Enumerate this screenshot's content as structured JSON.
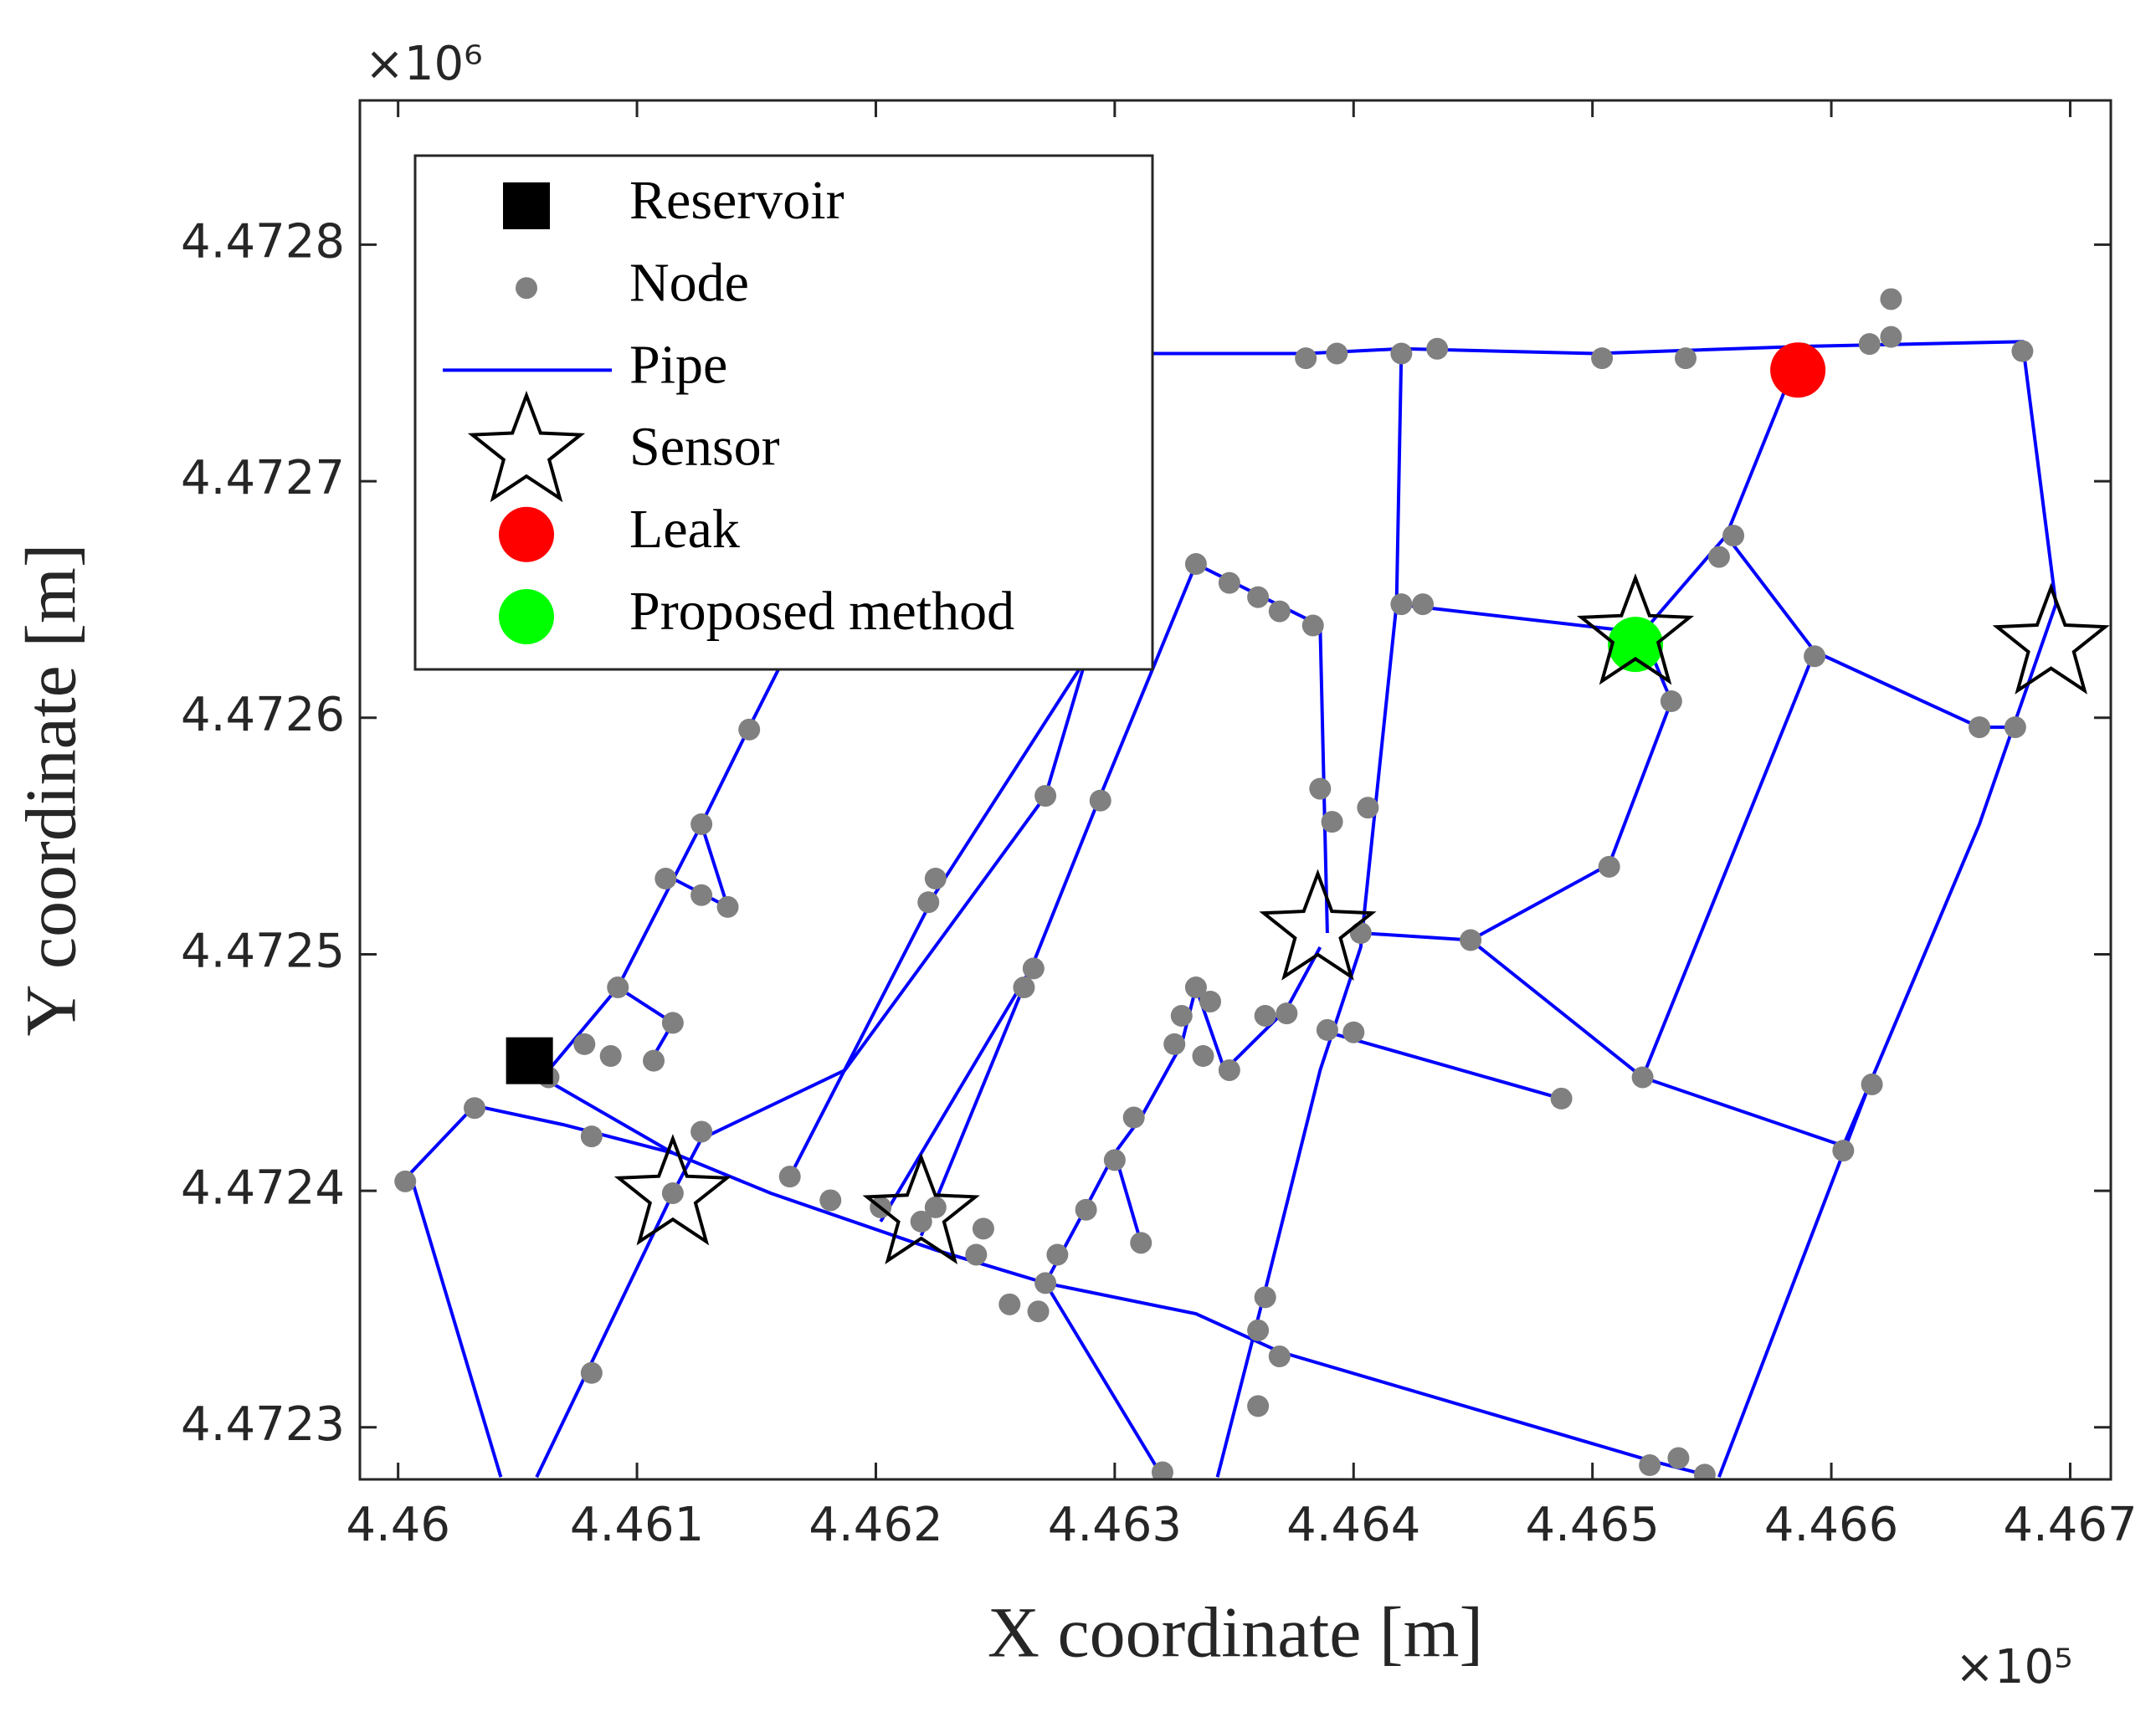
{
  "chart_data": {
    "type": "scatter",
    "xlabel": "X coordinate [m]",
    "ylabel": "Y coordinate [m]",
    "x_exponent_label": "×10⁵",
    "y_exponent_label": "×10⁶",
    "xlim": [
      445984,
      446717
    ],
    "ylim": [
      4472278,
      4472861
    ],
    "xticks": [
      {
        "value": 446000,
        "label": "4.46"
      },
      {
        "value": 446100,
        "label": "4.461"
      },
      {
        "value": 446200,
        "label": "4.462"
      },
      {
        "value": 446300,
        "label": "4.463"
      },
      {
        "value": 446400,
        "label": "4.464"
      },
      {
        "value": 446500,
        "label": "4.465"
      },
      {
        "value": 446600,
        "label": "4.466"
      },
      {
        "value": 446700,
        "label": "4.467"
      }
    ],
    "yticks": [
      {
        "value": 4472300,
        "label": "4.4723"
      },
      {
        "value": 4472400,
        "label": "4.4724"
      },
      {
        "value": 4472500,
        "label": "4.4725"
      },
      {
        "value": 4472600,
        "label": "4.4726"
      },
      {
        "value": 4472700,
        "label": "4.4727"
      },
      {
        "value": 4472800,
        "label": "4.4728"
      }
    ],
    "legend": "upper left",
    "series": [
      {
        "name": "Reservoir",
        "color": "#000000",
        "marker": "square",
        "x": [
          446055
        ],
        "y": [
          4472455
        ]
      },
      {
        "name": "Node",
        "color": "#808080",
        "marker": "circle",
        "x": [
          446380,
          446393,
          446420,
          446435,
          446504,
          446539,
          446588,
          446616,
          446625,
          446625,
          446680,
          446559,
          446553,
          446593,
          446533,
          446662,
          446677,
          446507,
          446449,
          446403,
          446386,
          446391,
          446406,
          446521,
          446605,
          446617,
          446487,
          446334,
          446348,
          446360,
          446369,
          446383,
          446420,
          446429,
          446389,
          446400,
          446363,
          446372,
          446360,
          446363,
          446369,
          446360,
          446320,
          446524,
          446536,
          446547,
          446334,
          446328,
          446340,
          446348,
          446325,
          446337,
          446308,
          446300,
          446311,
          446288,
          446276,
          446271,
          446256,
          446268,
          446242,
          446245,
          446225,
          446219,
          446202,
          446181,
          446164,
          446127,
          446115,
          446081,
          446081,
          446032,
          446003,
          446063,
          446078,
          446092,
          446115,
          446107,
          446089,
          446127,
          446112,
          446127,
          446138,
          446147,
          446225,
          446222,
          446271,
          446294,
          446262,
          446266
        ],
        "y": [
          4472752,
          4472754,
          4472754,
          4472756,
          4472752,
          4472752,
          4472754,
          4472758,
          4472777,
          4472761,
          4472755,
          4472677,
          4472668,
          4472626,
          4472607,
          4472596,
          4472596,
          4472537,
          4472506,
          4472509,
          4472570,
          4472556,
          4472562,
          4472448,
          4472417,
          4472445,
          4472439,
          4472665,
          4472657,
          4472651,
          4472645,
          4472639,
          4472648,
          4472648,
          4472468,
          4472467,
          4472474,
          4472475,
          4472341,
          4472355,
          4472330,
          4472309,
          4472281,
          4472284,
          4472287,
          4472280,
          4472486,
          4472474,
          4472480,
          4472451,
          4472462,
          4472457,
          4472431,
          4472413,
          4472378,
          4472392,
          4472373,
          4472361,
          4472352,
          4472349,
          4472373,
          4472384,
          4472393,
          4472387,
          4472393,
          4472396,
          4472406,
          4472425,
          4472399,
          4472323,
          4472423,
          4472435,
          4472404,
          4472448,
          4472462,
          4472486,
          4472471,
          4472455,
          4472457,
          4472555,
          4472532,
          4472525,
          4472520,
          4472595,
          4472532,
          4472522,
          4472567,
          4472565,
          4472486,
          4472494
        ]
      },
      {
        "name": "Pipe",
        "color": "#0000ff",
        "marker": "line",
        "lines": [
          {
            "x": [
              446294,
              446380,
              446420,
              446501,
              446588,
              446680,
              446694
            ],
            "y": [
              4472754,
              4472754,
              4472756,
              4472754,
              4472757,
              4472759,
              4472648
            ]
          },
          {
            "x": [
              446420,
              446418,
              446403,
              446386,
              446363,
              446343
            ],
            "y": [
              4472756,
              4472648,
              4472503,
              4472451,
              4472358,
              4472279
            ]
          },
          {
            "x": [
              446694,
              446662,
              446616,
              446553
            ],
            "y": [
              4472648,
              4472555,
              4472445,
              4472279
            ]
          },
          {
            "x": [
              446588,
              446556,
              446521,
              446533,
              446507,
              446449,
              446403
            ],
            "y": [
              4472757,
              4472677,
              4472636,
              4472607,
              4472538,
              4472506,
              4472509
            ]
          },
          {
            "x": [
              446556,
              446593,
              446662,
              446680
            ],
            "y": [
              4472677,
              4472628,
              4472596,
              4472596
            ]
          },
          {
            "x": [
              446593,
              446521,
              446605,
              446616
            ],
            "y": [
              4472628,
              4472448,
              4472419,
              4472445
            ]
          },
          {
            "x": [
              446418,
              446521
            ],
            "y": [
              4472648,
              4472636
            ]
          },
          {
            "x": [
              446449,
              446521
            ],
            "y": [
              4472506,
              4472448
            ]
          },
          {
            "x": [
              446386,
              446487
            ],
            "y": [
              4472468,
              4472439
            ]
          },
          {
            "x": [
              446055,
              446115,
              446156,
              446225,
              446271,
              446334,
              446369,
              446524,
              446547
            ],
            "y": [
              4472451,
              4472416,
              4472399,
              4472375,
              4472361,
              4472348,
              4472332,
              4472286,
              4472280
            ]
          },
          {
            "x": [
              446000,
              446032,
              446069,
              446115
            ],
            "y": [
              4472402,
              4472436,
              4472428,
              4472416
            ]
          },
          {
            "x": [
              446006,
              446043
            ],
            "y": [
              4472404,
              4472279
            ]
          },
          {
            "x": [
              446058,
              446115,
              446127,
              446187,
              446271,
              446288
            ],
            "y": [
              4472279,
              4472399,
              4472422,
              4472451,
              4472567,
              4472625
            ]
          },
          {
            "x": [
              446164,
              446225,
              446288
            ],
            "y": [
              4472406,
              4472526,
              4472625
            ]
          },
          {
            "x": [
              446202,
              446265,
              446294,
              446334,
              446386,
              446389
            ],
            "y": [
              4472387,
              4472494,
              4472567,
              4472665,
              4472639,
              4472509
            ]
          },
          {
            "x": [
              446219,
              446265
            ],
            "y": [
              4472381,
              4472494
            ]
          },
          {
            "x": [
              446063,
              446092,
              446127,
              446147,
              446179
            ],
            "y": [
              4472451,
              4472486,
              4472555,
              4472596,
              4472660
            ]
          },
          {
            "x": [
              446320,
              446271,
              446288,
              446300,
              446311,
              446328,
              446334,
              446346,
              446372,
              446386
            ],
            "y": [
              4472279,
              4472361,
              4472393,
              4472416,
              4472431,
              4472462,
              4472486,
              4472451,
              4472477,
              4472503
            ]
          },
          {
            "x": [
              446300,
              446311
            ],
            "y": [
              4472416,
              4472378
            ]
          },
          {
            "x": [
              446092,
              446115,
              446107
            ],
            "y": [
              4472486,
              4472471,
              4472457
            ]
          },
          {
            "x": [
              446127,
              446138,
              446115
            ],
            "y": [
              4472555,
              4472520,
              4472532
            ]
          }
        ]
      },
      {
        "name": "Sensor",
        "color": "#000000",
        "marker": "star",
        "x": [
          446115,
          446219,
          446385,
          446518,
          446692
        ],
        "y": [
          4472398,
          4472390,
          4472510,
          4472635,
          4472631
        ]
      },
      {
        "name": "Leak",
        "color": "#ff0000",
        "marker": "circle-large",
        "x": [
          446586
        ],
        "y": [
          4472747
        ]
      },
      {
        "name": "Proposed method",
        "color": "#00ff00",
        "marker": "circle-large",
        "x": [
          446518
        ],
        "y": [
          4472631
        ]
      }
    ]
  }
}
